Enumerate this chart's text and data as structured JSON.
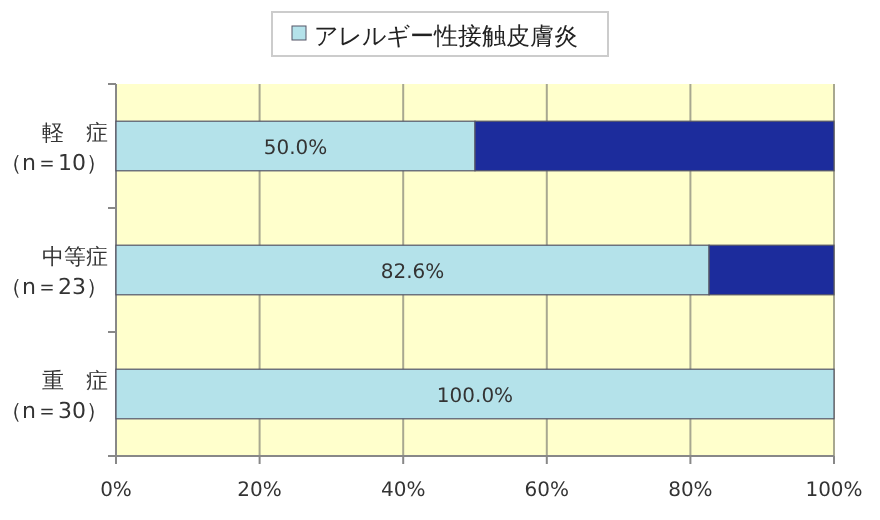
{
  "chart_data": {
    "type": "bar",
    "orientation": "horizontal",
    "stacked": true,
    "categories": [
      "軽　症（n＝10）",
      "中等症（n＝23）",
      "重　症（n＝30）"
    ],
    "series": [
      {
        "name": "アレルギー性接触皮膚炎",
        "color": "#b4e2ea",
        "values": [
          50.0,
          82.6,
          100.0
        ],
        "value_labels": [
          "50.0%",
          "82.6%",
          "100.0%"
        ]
      },
      {
        "color": "#1c2c9c",
        "values": [
          50.0,
          17.4,
          null
        ]
      }
    ],
    "xlim": [
      0,
      100
    ],
    "xticks": [
      {
        "value": 0,
        "label": "0%"
      },
      {
        "value": 20,
        "label": "20%"
      },
      {
        "value": 40,
        "label": "40%"
      },
      {
        "value": 60,
        "label": "60%"
      },
      {
        "value": 80,
        "label": "80%"
      },
      {
        "value": 100,
        "label": "100%"
      }
    ],
    "grid": "x",
    "legend": "top"
  }
}
